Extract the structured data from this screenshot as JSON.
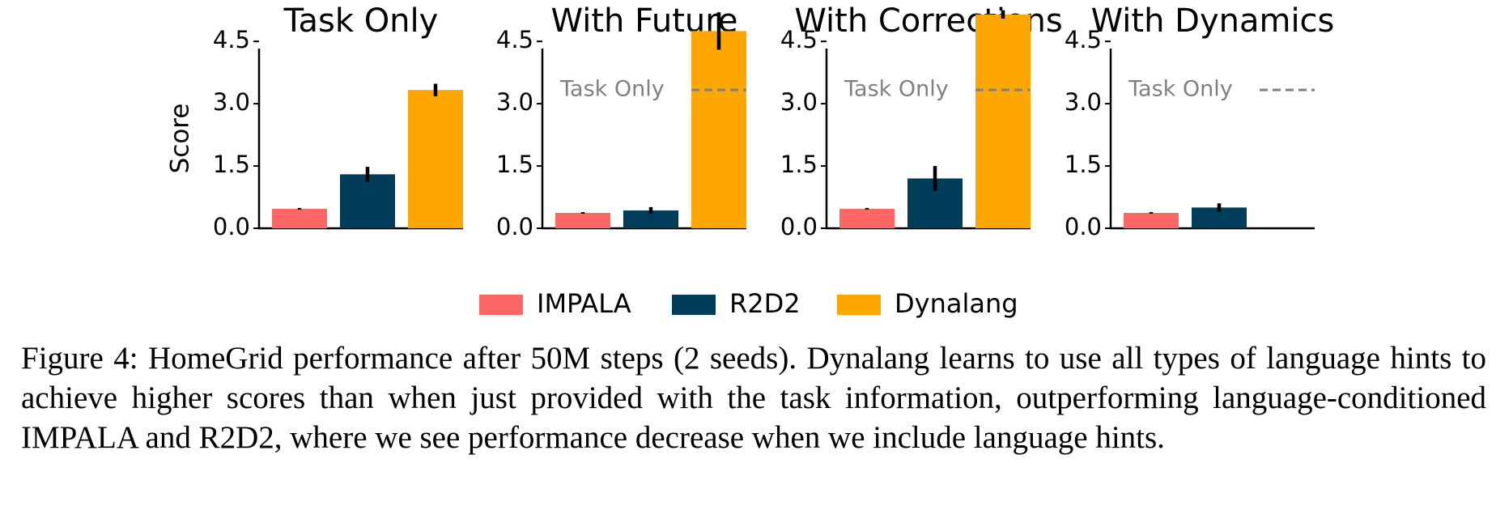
{
  "figure": {
    "caption": "Figure 4: HomeGrid performance after 50M steps (2 seeds). Dynalang learns to use all types of language hints to achieve higher scores than when just provided with the task information, outperforming language-conditioned IMPALA and R2D2, where we see performance decrease when we include language hints."
  },
  "chart_data": [
    {
      "type": "bar",
      "title": "Task Only",
      "ylabel": "Score",
      "ylim": [
        0,
        6.5
      ],
      "yticks": [
        "0.0",
        "1.5",
        "3.0",
        "4.5",
        "6.0"
      ],
      "series": [
        {
          "name": "IMPALA",
          "value": 0.47,
          "err": 0.02
        },
        {
          "name": "R2D2",
          "value": 1.3,
          "err": 0.18
        },
        {
          "name": "Dynalang",
          "value": 3.33,
          "err": 0.15
        }
      ]
    },
    {
      "type": "bar",
      "title": "With Future",
      "ylabel": "",
      "ylim": [
        0,
        6.5
      ],
      "yticks": [
        "0.0",
        "1.5",
        "3.0",
        "4.5",
        "6.0"
      ],
      "reference": {
        "label": "Task Only",
        "value": 3.33
      },
      "series": [
        {
          "name": "IMPALA",
          "value": 0.37,
          "err": 0.02
        },
        {
          "name": "R2D2",
          "value": 0.43,
          "err": 0.08
        },
        {
          "name": "Dynalang",
          "value": 4.75,
          "err": 0.45
        }
      ]
    },
    {
      "type": "bar",
      "title": "With Corrections",
      "ylabel": "",
      "ylim": [
        0,
        6.5
      ],
      "yticks": [
        "0.0",
        "1.5",
        "3.0",
        "4.5",
        "6.0"
      ],
      "reference": {
        "label": "Task Only",
        "value": 3.33
      },
      "series": [
        {
          "name": "IMPALA",
          "value": 0.47,
          "err": 0.02
        },
        {
          "name": "R2D2",
          "value": 1.2,
          "err": 0.3
        },
        {
          "name": "Dynalang",
          "value": 5.15,
          "err": 0.1
        }
      ]
    },
    {
      "type": "bar",
      "title": "With Dynamics",
      "ylabel": "",
      "ylim": [
        0,
        6.5
      ],
      "yticks": [
        "0.0",
        "1.5",
        "3.0",
        "4.5",
        "6.0"
      ],
      "reference": {
        "label": "Task Only",
        "value": 3.33
      },
      "series": [
        {
          "name": "IMPALA",
          "value": 0.37,
          "err": 0.02
        },
        {
          "name": "R2D2",
          "value": 0.5,
          "err": 0.1
        }
      ]
    }
  ],
  "legend": {
    "placement": "bottom-center",
    "items": [
      {
        "label": "IMPALA",
        "color": "#ff6666"
      },
      {
        "label": "R2D2",
        "color": "#003d5b"
      },
      {
        "label": "Dynalang",
        "color": "#ffa600"
      }
    ]
  },
  "colors": {
    "IMPALA": "#ff6666",
    "R2D2": "#003d5b",
    "Dynalang": "#ffa600",
    "reference": "#808080"
  }
}
